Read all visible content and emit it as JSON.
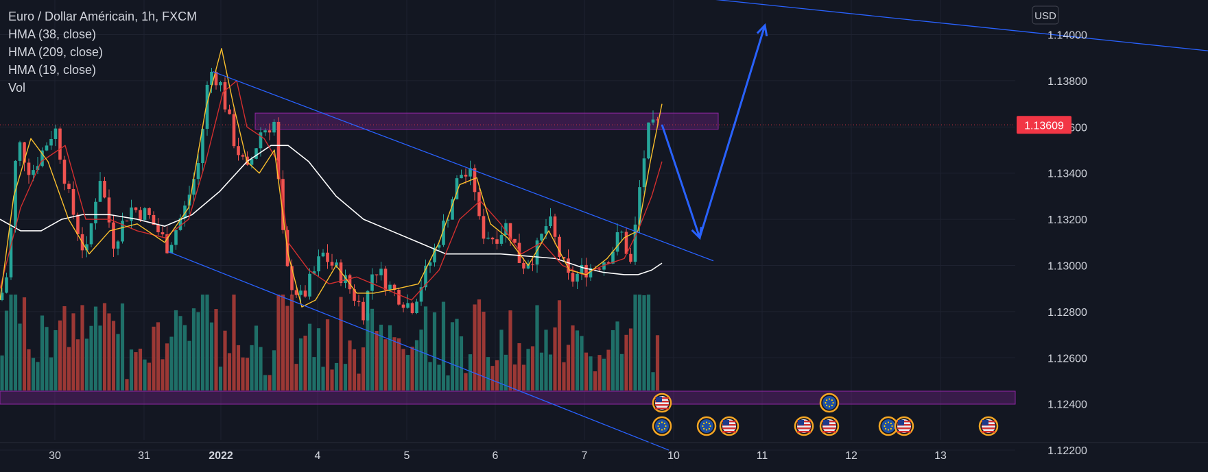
{
  "legend": {
    "title": "Euro / Dollar Américain, 1h, FXCM",
    "lines": [
      "HMA (38, close)",
      "HMA (209, close)",
      "HMA (19, close)",
      "Vol"
    ]
  },
  "currency_button": "USD",
  "current_price_label": "1.13609",
  "colors": {
    "background": "#131722",
    "grid": "#1e2230",
    "up": "#26a69a",
    "down": "#ef5350",
    "vol_up": "#1f6f68",
    "vol_down": "#9b3835",
    "hma38": "#fbc02d",
    "hma209": "#ffffff",
    "hma19": "#d32f2f",
    "trendline": "#2962ff",
    "arrow": "#2962ff",
    "zone": "#9c27b0",
    "price_badge": "#f23645"
  },
  "chart_data": {
    "type": "candlestick",
    "symbol": "Euro / Dollar Américain",
    "interval": "1h",
    "source": "FXCM",
    "y_axis": {
      "ticks": [
        "1.14000",
        "1.13800",
        "1.13600",
        "1.13400",
        "1.13200",
        "1.13000",
        "1.12800",
        "1.12600",
        "1.12400",
        "1.12200"
      ],
      "ylim": [
        1.1212,
        1.1415
      ],
      "currency": "USD"
    },
    "x_axis": {
      "tick_labels": [
        "30",
        "31",
        "2022",
        "4",
        "5",
        "6",
        "7",
        "10",
        "11",
        "12",
        "13"
      ]
    },
    "current_price": 1.13609,
    "key_levels": {
      "resistance_zone": [
        1.1359,
        1.1366
      ],
      "current_line": 1.13609
    },
    "series": [
      {
        "name": "HMA (38, close)"
      },
      {
        "name": "HMA (209, close)"
      },
      {
        "name": "HMA (19, close)"
      },
      {
        "name": "Vol"
      }
    ],
    "close_path": [
      [
        0,
        1.1285
      ],
      [
        12,
        1.1298
      ],
      [
        25,
        1.1355
      ],
      [
        45,
        1.134
      ],
      [
        80,
        1.136
      ],
      [
        100,
        1.133
      ],
      [
        125,
        1.1303
      ],
      [
        145,
        1.134
      ],
      [
        165,
        1.131
      ],
      [
        190,
        1.1325
      ],
      [
        215,
        1.1322
      ],
      [
        245,
        1.1308
      ],
      [
        270,
        1.1325
      ],
      [
        290,
        1.1345
      ],
      [
        305,
        1.1385
      ],
      [
        320,
        1.138
      ],
      [
        340,
        1.1355
      ],
      [
        360,
        1.134
      ],
      [
        380,
        1.1358
      ],
      [
        400,
        1.1362
      ],
      [
        410,
        1.1318
      ],
      [
        420,
        1.1295
      ],
      [
        440,
        1.1285
      ],
      [
        470,
        1.1305
      ],
      [
        500,
        1.1295
      ],
      [
        530,
        1.128
      ],
      [
        545,
        1.13
      ],
      [
        570,
        1.129
      ],
      [
        600,
        1.1282
      ],
      [
        625,
        1.13
      ],
      [
        650,
        1.132
      ],
      [
        670,
        1.134
      ],
      [
        690,
        1.1338
      ],
      [
        700,
        1.1315
      ],
      [
        720,
        1.1312
      ],
      [
        740,
        1.1318
      ],
      [
        760,
        1.13
      ],
      [
        780,
        1.1305
      ],
      [
        800,
        1.132
      ],
      [
        815,
        1.1305
      ],
      [
        830,
        1.1293
      ],
      [
        850,
        1.1298
      ],
      [
        870,
        1.13
      ],
      [
        890,
        1.1305
      ],
      [
        905,
        1.1315
      ],
      [
        920,
        1.13
      ],
      [
        935,
        1.134
      ],
      [
        945,
        1.1358
      ],
      [
        960,
        1.1361
      ]
    ],
    "hma38_path": [
      [
        0,
        1.1285
      ],
      [
        20,
        1.133
      ],
      [
        45,
        1.1355
      ],
      [
        70,
        1.1345
      ],
      [
        100,
        1.132
      ],
      [
        130,
        1.1305
      ],
      [
        160,
        1.1315
      ],
      [
        200,
        1.1318
      ],
      [
        240,
        1.131
      ],
      [
        275,
        1.1325
      ],
      [
        300,
        1.1368
      ],
      [
        323,
        1.1394
      ],
      [
        340,
        1.137
      ],
      [
        360,
        1.1345
      ],
      [
        378,
        1.134
      ],
      [
        400,
        1.135
      ],
      [
        420,
        1.1305
      ],
      [
        440,
        1.1282
      ],
      [
        460,
        1.1285
      ],
      [
        490,
        1.13
      ],
      [
        520,
        1.1288
      ],
      [
        545,
        1.1288
      ],
      [
        580,
        1.129
      ],
      [
        610,
        1.1292
      ],
      [
        640,
        1.131
      ],
      [
        670,
        1.1335
      ],
      [
        695,
        1.1338
      ],
      [
        715,
        1.1318
      ],
      [
        740,
        1.1312
      ],
      [
        770,
        1.13
      ],
      [
        800,
        1.1315
      ],
      [
        830,
        1.1298
      ],
      [
        855,
        1.1296
      ],
      [
        885,
        1.1303
      ],
      [
        910,
        1.1312
      ],
      [
        930,
        1.1315
      ],
      [
        948,
        1.1345
      ],
      [
        965,
        1.137
      ]
    ],
    "hma19_path": [
      [
        0,
        1.129
      ],
      [
        30,
        1.1325
      ],
      [
        60,
        1.1345
      ],
      [
        95,
        1.1352
      ],
      [
        125,
        1.132
      ],
      [
        160,
        1.132
      ],
      [
        200,
        1.1315
      ],
      [
        240,
        1.1312
      ],
      [
        275,
        1.132
      ],
      [
        300,
        1.1345
      ],
      [
        325,
        1.1375
      ],
      [
        345,
        1.138
      ],
      [
        360,
        1.136
      ],
      [
        385,
        1.1355
      ],
      [
        405,
        1.1345
      ],
      [
        420,
        1.131
      ],
      [
        450,
        1.1298
      ],
      [
        480,
        1.1292
      ],
      [
        520,
        1.1295
      ],
      [
        560,
        1.129
      ],
      [
        600,
        1.1285
      ],
      [
        640,
        1.1298
      ],
      [
        670,
        1.132
      ],
      [
        700,
        1.1328
      ],
      [
        730,
        1.1318
      ],
      [
        760,
        1.1305
      ],
      [
        790,
        1.131
      ],
      [
        820,
        1.13
      ],
      [
        850,
        1.1296
      ],
      [
        880,
        1.13
      ],
      [
        910,
        1.1303
      ],
      [
        930,
        1.1315
      ],
      [
        950,
        1.133
      ],
      [
        965,
        1.1345
      ]
    ],
    "hma209_path": [
      [
        0,
        1.132
      ],
      [
        30,
        1.1315
      ],
      [
        60,
        1.1315
      ],
      [
        90,
        1.132
      ],
      [
        120,
        1.1322
      ],
      [
        160,
        1.1322
      ],
      [
        200,
        1.132
      ],
      [
        240,
        1.1317
      ],
      [
        280,
        1.1322
      ],
      [
        320,
        1.1332
      ],
      [
        360,
        1.1345
      ],
      [
        395,
        1.1352
      ],
      [
        420,
        1.1352
      ],
      [
        450,
        1.1345
      ],
      [
        490,
        1.133
      ],
      [
        530,
        1.132
      ],
      [
        570,
        1.1315
      ],
      [
        610,
        1.131
      ],
      [
        650,
        1.1305
      ],
      [
        690,
        1.1305
      ],
      [
        730,
        1.1305
      ],
      [
        770,
        1.1304
      ],
      [
        810,
        1.1303
      ],
      [
        850,
        1.1299
      ],
      [
        880,
        1.1297
      ],
      [
        910,
        1.1296
      ],
      [
        930,
        1.1296
      ],
      [
        950,
        1.1298
      ],
      [
        965,
        1.1301
      ]
    ],
    "trendlines": [
      {
        "name": "upper channel",
        "from": [
          310,
          1.1384
        ],
        "to": [
          1040,
          1.1302
        ]
      },
      {
        "name": "lower channel",
        "from": [
          245,
          1.1306
        ],
        "to": [
          975,
          1.122
        ]
      },
      {
        "name": "upper right",
        "from": [
          920,
          1.1419
        ],
        "to": [
          1761,
          1.1393
        ]
      }
    ],
    "projection_arrow": [
      [
        965,
        1.1361
      ],
      [
        1020,
        1.1312
      ],
      [
        1115,
        1.1404
      ]
    ],
    "events": [
      {
        "flag": "us",
        "x": 965,
        "row": 1
      },
      {
        "flag": "eu",
        "x": 965,
        "row": 2
      },
      {
        "flag": "eu",
        "x": 1030,
        "row": 2
      },
      {
        "flag": "us",
        "x": 1063,
        "row": 2
      },
      {
        "flag": "us",
        "x": 1172,
        "row": 2
      },
      {
        "flag": "eu",
        "x": 1209,
        "row": 1
      },
      {
        "flag": "us",
        "x": 1209,
        "row": 2
      },
      {
        "flag": "eu",
        "x": 1295,
        "row": 2
      },
      {
        "flag": "us",
        "x": 1318,
        "row": 2
      },
      {
        "flag": "us",
        "x": 1441,
        "row": 2
      }
    ]
  }
}
